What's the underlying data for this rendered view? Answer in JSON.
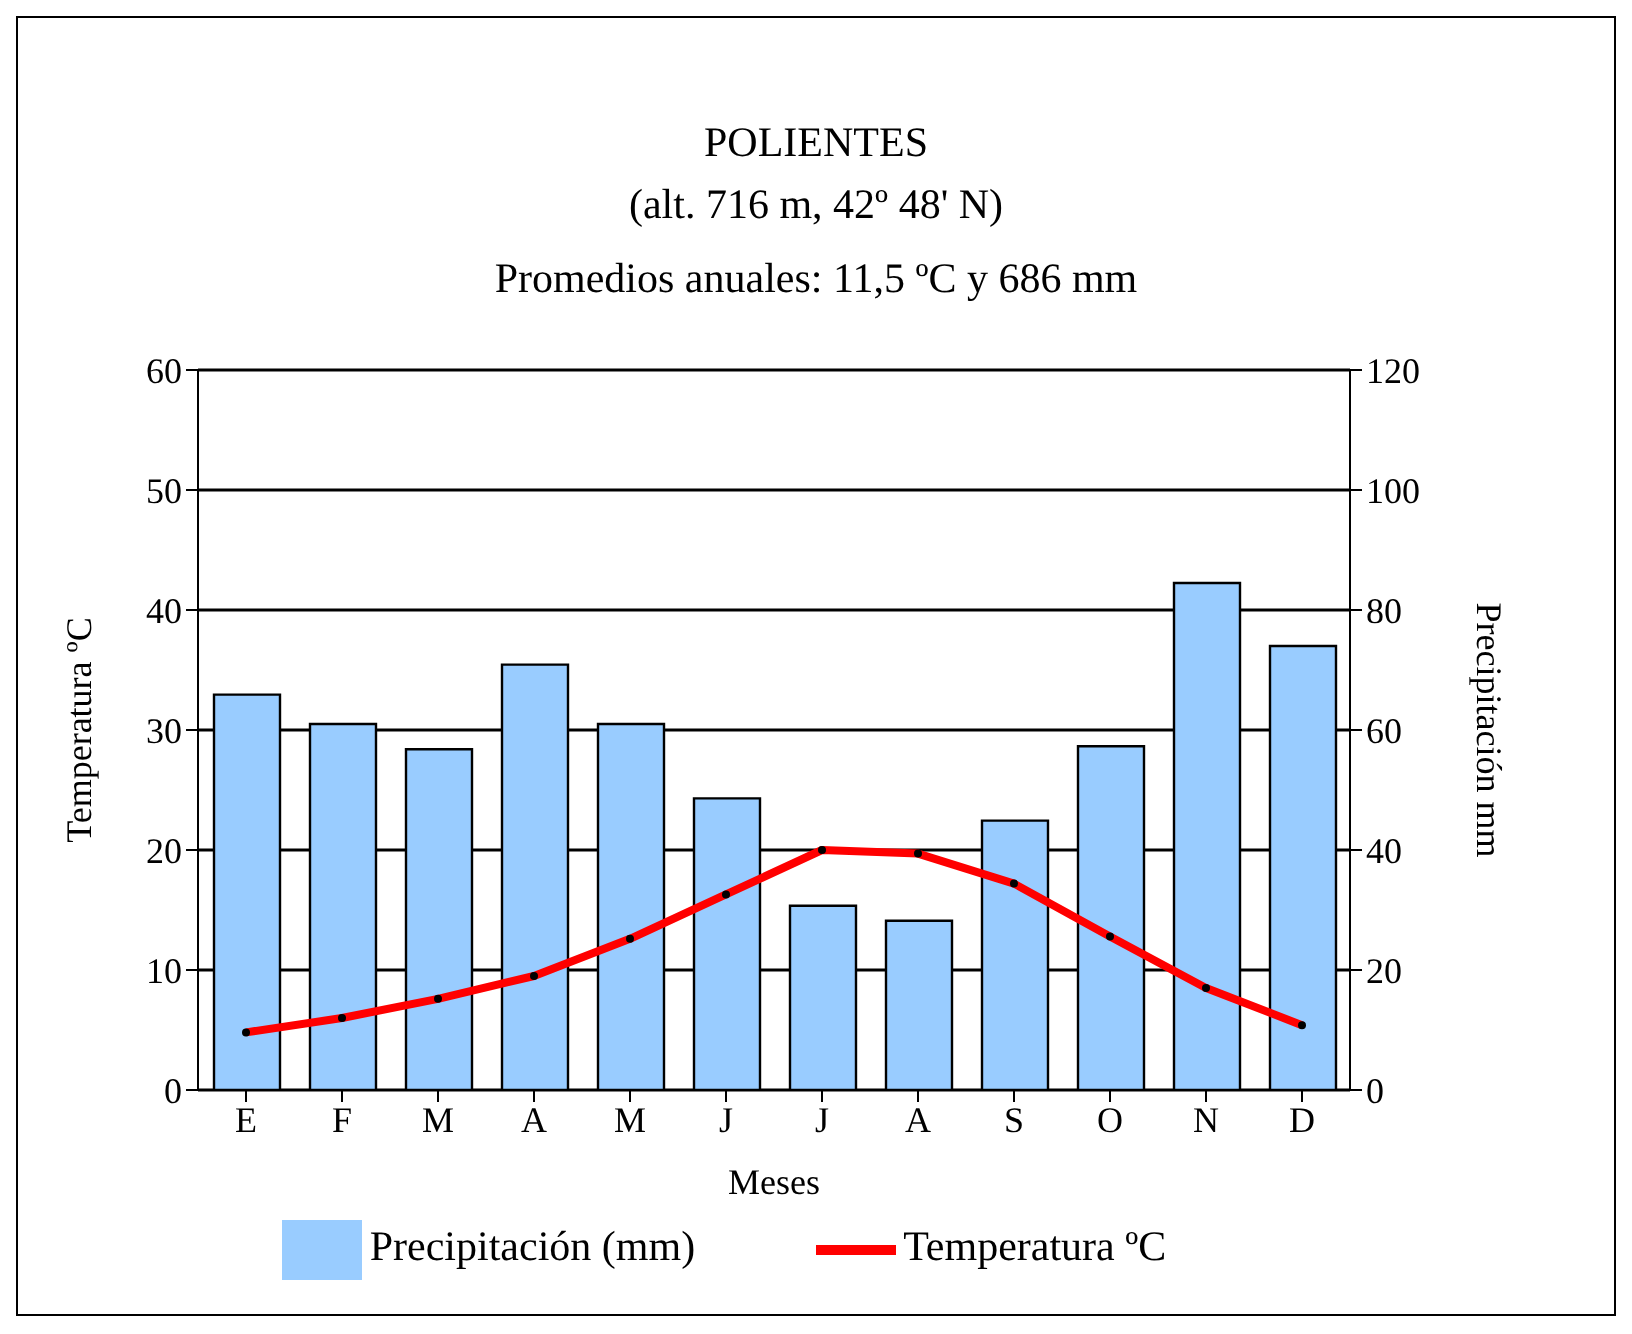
{
  "chart_data": {
    "type": "bar",
    "title": "POLIENTES",
    "subtitle": "(alt. 716 m, 42º 48' N)",
    "annotations": [
      "Promedios anuales: 11,5 ºC y 686 mm"
    ],
    "xlabel": "Meses",
    "ylabel": "Temperatura ºC",
    "y2label": "Precipitación mm",
    "categories": [
      "E",
      "F",
      "M",
      "A",
      "M",
      "J",
      "J",
      "A",
      "S",
      "O",
      "N",
      "D"
    ],
    "series": [
      {
        "name": "Precipitación (mm)",
        "axis": "y2",
        "color": "#99ccff",
        "values": [
          65.9,
          61,
          56.8,
          70.9,
          61,
          48.6,
          30.7,
          28.2,
          44.9,
          57.3,
          84.5,
          74
        ]
      },
      {
        "name": "Temperatura ºC",
        "type": "line",
        "color": "#ff0000",
        "marker": "circle",
        "values": [
          4.8,
          6.0,
          7.6,
          9.5,
          12.6,
          16.3,
          20.0,
          19.7,
          17.2,
          12.8,
          8.5,
          5.4
        ]
      }
    ],
    "ylim": [
      0,
      60
    ],
    "yticks": [
      0,
      10,
      20,
      30,
      40,
      50,
      60
    ],
    "y2lim": [
      0,
      120
    ],
    "y2ticks": [
      0,
      20,
      40,
      60,
      80,
      100,
      120
    ],
    "grid": "y",
    "legend": "bottom"
  }
}
